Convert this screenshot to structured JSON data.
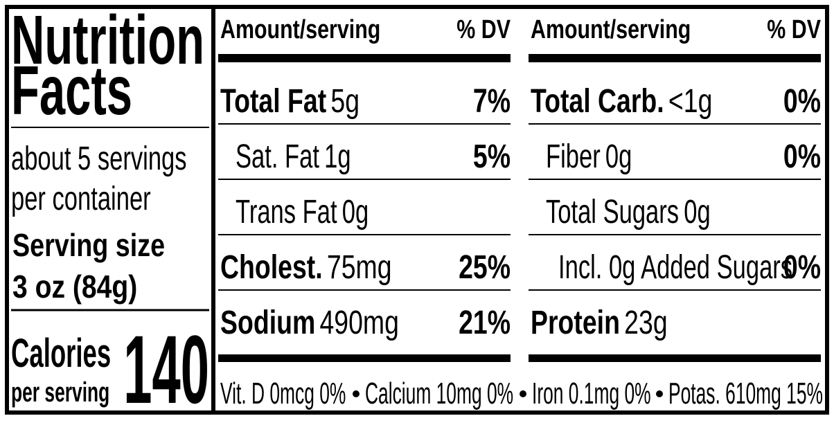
{
  "title": [
    "Nutrition",
    "Facts"
  ],
  "servings_per_container": [
    "about 5 servings",
    "per container"
  ],
  "serving_size": {
    "label": "Serving size",
    "amount": "3 oz (84g)"
  },
  "calories": {
    "label": "Calories",
    "per": "per serving",
    "value": 140
  },
  "columns": [
    {
      "header": {
        "amount": "Amount/serving",
        "dv": "% DV"
      },
      "rows": [
        {
          "name": "Total Fat",
          "amount": "5g",
          "dv": "7%"
        },
        {
          "name": "Sat. Fat",
          "amount": "1g",
          "dv": "5%"
        },
        {
          "name": "Trans Fat",
          "amount": "0g"
        },
        {
          "name": "Cholest.",
          "amount": "75mg",
          "dv": "25%"
        },
        {
          "name": "Sodium",
          "amount": "490mg",
          "dv": "21%"
        }
      ]
    },
    {
      "header": {
        "amount": "Amount/serving",
        "dv": "% DV"
      },
      "rows": [
        {
          "name": "Total Carb.",
          "amount": "<1g",
          "dv": "0%"
        },
        {
          "name": "Fiber",
          "amount": "0g",
          "dv": "0%"
        },
        {
          "name": "Total Sugars",
          "amount": "0g"
        },
        {
          "name": "Incl. 0g Added Sugars",
          "dv": "0%"
        },
        {
          "name": "Protein",
          "amount": "23g"
        }
      ]
    }
  ],
  "footer": [
    "Vit. D 0mcg 0%",
    "Calcium 10mg 0%",
    "Iron 0.1mg 0%",
    "Potas. 610mg 15%"
  ]
}
